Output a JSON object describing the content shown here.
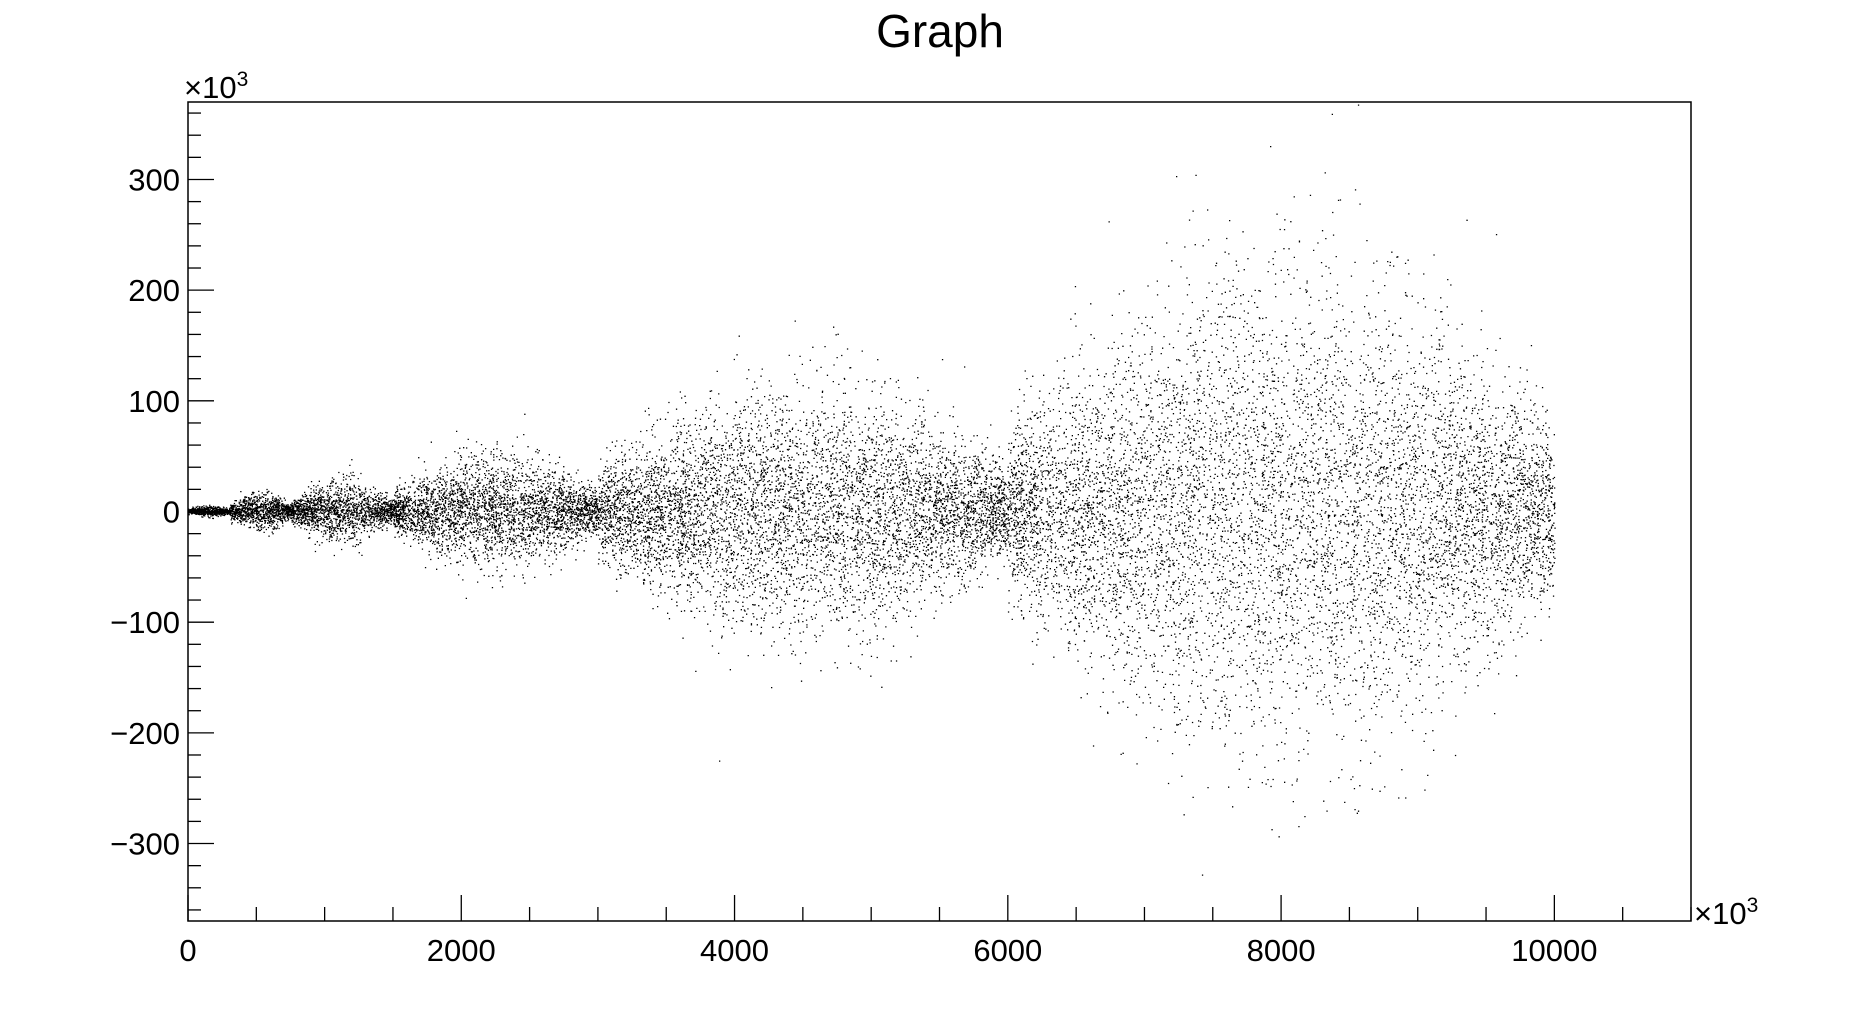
{
  "chart_data": {
    "type": "scatter",
    "title": "Graph",
    "x_multiplier_label": "×10",
    "x_multiplier_exp": "3",
    "y_multiplier_label": "×10",
    "y_multiplier_exp": "3",
    "xlim": [
      0,
      11000
    ],
    "ylim": [
      -370,
      370
    ],
    "x_ticks": [
      0,
      2000,
      4000,
      6000,
      8000,
      10000
    ],
    "x_tick_labels": [
      "0",
      "2000",
      "4000",
      "6000",
      "8000",
      "10000"
    ],
    "y_ticks": [
      300,
      200,
      100,
      0,
      -100,
      -200,
      -300
    ],
    "y_tick_labels": [
      "300",
      "200",
      "100",
      "0",
      "−100",
      "−200",
      "−300"
    ],
    "grid": false,
    "marker_color": "#000000",
    "envelope_segments": [
      {
        "x_start": 0,
        "x_end": 300,
        "y_spread": 5
      },
      {
        "x_start": 300,
        "x_end": 750,
        "y_spread": 18
      },
      {
        "x_start": 750,
        "x_end": 1500,
        "y_spread": 30
      },
      {
        "x_start": 1500,
        "x_end": 3000,
        "y_spread": 55
      },
      {
        "x_start": 3000,
        "x_end": 6000,
        "y_spread": 120
      },
      {
        "x_start": 6000,
        "x_end": 10000,
        "y_spread": 230
      }
    ]
  }
}
